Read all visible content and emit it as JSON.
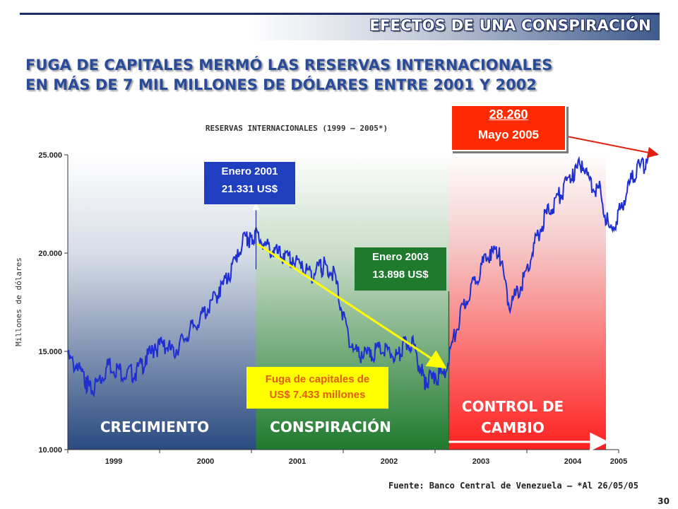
{
  "header": {
    "section_title": "EFECTOS DE UNA CONSPIRACIÓN",
    "headline_line1": "FUGA DE CAPITALES MERMÓ LAS RESERVAS INTERNACIONALES",
    "headline_line2": "EN MÁS DE 7 MIL MILLONES DE DÓLARES ENTRE 2001 Y 2002"
  },
  "chart_data": {
    "type": "line",
    "title": "RESERVAS INTERNACIONALES (1999 – 2005*)",
    "ylabel": "Millones de dólares",
    "xlabel": "",
    "ylim": [
      10000,
      25000
    ],
    "xlim": [
      1999.0,
      2005.5
    ],
    "y_ticks": [
      "10.000",
      "15.000",
      "20.000",
      "25.000"
    ],
    "x_ticks": [
      "1999",
      "2000",
      "2001",
      "2002",
      "2003",
      "2004",
      "2005"
    ],
    "grid": false,
    "series": [
      {
        "x": [
          1999.0,
          1999.1,
          1999.2,
          1999.25,
          1999.35,
          1999.45,
          1999.55,
          1999.65,
          1999.75,
          1999.85,
          1999.95,
          2000.05,
          2000.15,
          2000.25,
          2000.35,
          2000.45,
          2000.55,
          2000.65,
          2000.75,
          2000.85,
          2000.95,
          2001.0,
          2001.05,
          2001.15,
          2001.25,
          2001.35,
          2001.45,
          2001.55,
          2001.65,
          2001.75,
          2001.8,
          2001.9,
          2002.0,
          2002.1,
          2002.2,
          2002.3,
          2002.4,
          2002.5,
          2002.6,
          2002.65,
          2002.75,
          2002.85,
          2002.9,
          2003.0,
          2003.1,
          2003.2,
          2003.3,
          2003.4,
          2003.5,
          2003.6,
          2003.7,
          2003.8,
          2003.9,
          2004.0,
          2004.1,
          2004.2,
          2004.3,
          2004.4,
          2004.5,
          2004.6,
          2004.7,
          2004.8,
          2004.9,
          2005.0,
          2005.1,
          2005.2,
          2005.3,
          2005.42
        ],
        "y": [
          14900,
          14400,
          13700,
          13200,
          13800,
          14600,
          14300,
          14100,
          14200,
          14800,
          15400,
          15600,
          15200,
          15800,
          16400,
          17000,
          17600,
          18300,
          19000,
          20200,
          21100,
          20900,
          21300,
          20600,
          20300,
          20000,
          19800,
          19600,
          19100,
          19500,
          19600,
          19200,
          17000,
          15400,
          15000,
          15100,
          15300,
          15200,
          14900,
          15500,
          15700,
          14200,
          13700,
          13900,
          14100,
          15800,
          17400,
          18500,
          19500,
          20200,
          20300,
          17500,
          18200,
          19300,
          20900,
          22100,
          22800,
          23500,
          24300,
          24700,
          23800,
          23400,
          21300,
          22200,
          23600,
          24500,
          24800,
          28260
        ]
      }
    ],
    "phases": [
      {
        "label": "CRECIMIENTO",
        "from": 1999.0,
        "to": 2001.05,
        "color": "#2a4a80"
      },
      {
        "label": "CONSPIRACIÓN",
        "from": 2001.05,
        "to": 2003.15,
        "color": "#1f7a2e"
      },
      {
        "label_line1": "CONTROL DE",
        "label_line2": "CAMBIO",
        "from": 2003.15,
        "to": 2005.42,
        "color": "#ff2020"
      }
    ],
    "annotations": [
      {
        "id": "jan2001",
        "line1": "Enero  2001",
        "line2": "21.331 US$",
        "x": 2001.05,
        "y": 21331,
        "color": "#1f3fc0"
      },
      {
        "id": "jan2003",
        "line1": "Enero 2003",
        "line2": "13.898 US$",
        "x": 2003.15,
        "y": 13898,
        "color": "#1f7a2e"
      },
      {
        "id": "may2005",
        "line1": "28.260",
        "line2": "Mayo 2005",
        "x": 2005.42,
        "y": 28260,
        "color": "#ff2a00"
      },
      {
        "id": "flight",
        "line1": "Fuga de capitales de",
        "line2": "US$ 7.433 millones",
        "color": "#ffff00"
      }
    ]
  },
  "footer": {
    "source": "Fuente: Banco Central de Venezuela – *Al  26/05/05",
    "page_number": "30"
  }
}
